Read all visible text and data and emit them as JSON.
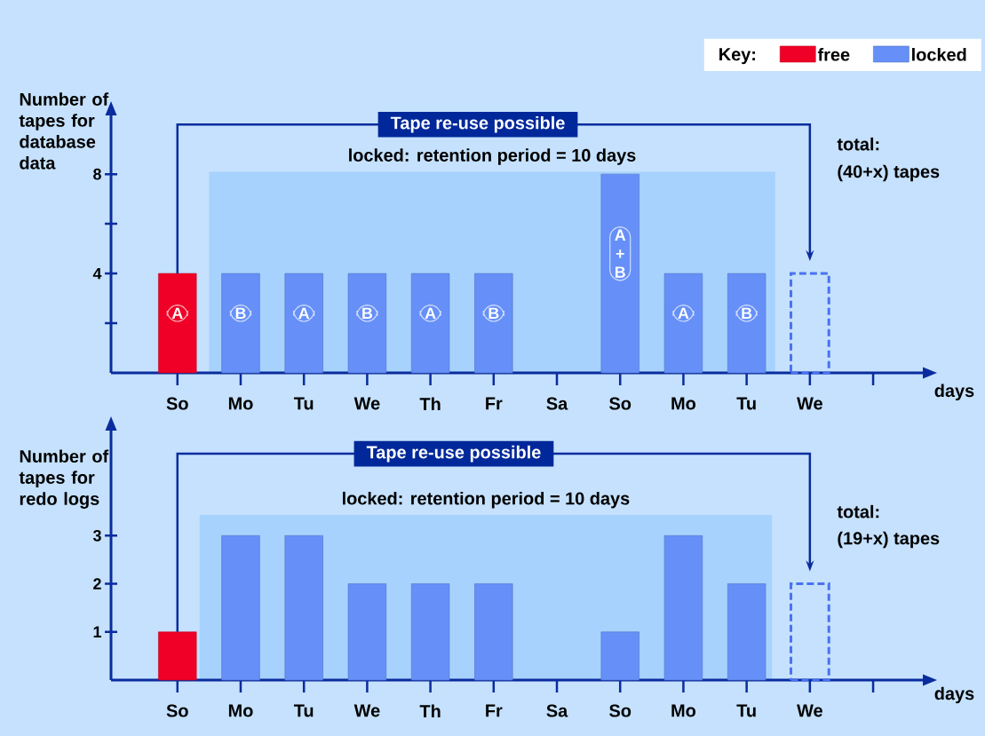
{
  "chart_data": [
    {
      "type": "bar",
      "ylabel": "Number of tapes for database data",
      "xlabel": "days",
      "legend_title": "Key:",
      "legend": "top right",
      "annotations": [
        "Tape re-use possible",
        "locked: retention period = 10 days",
        "total:",
        "(40+x) tapes"
      ],
      "categories": [
        "So",
        "Mo",
        "Tu",
        "We",
        "Th",
        "Fr",
        "Sa",
        "So",
        "Mo",
        "Tu",
        "We",
        null
      ],
      "ylim": [
        0,
        10.4
      ],
      "yticks": [
        {
          "value": 2,
          "label": null
        },
        4,
        {
          "value": 6,
          "label": null
        },
        8
      ],
      "series": [
        {
          "name": "free",
          "color": "#f00026",
          "values": [
            4,
            null,
            null,
            null,
            null,
            null,
            null,
            null,
            null,
            null,
            null,
            null
          ],
          "value_labels": [
            "A",
            null,
            null,
            null,
            null,
            null,
            null,
            null,
            null,
            null,
            null,
            null
          ]
        },
        {
          "name": "locked",
          "color": "#6690f8",
          "values": [
            null,
            4,
            4,
            4,
            4,
            4,
            null,
            8,
            4,
            4,
            null,
            null
          ],
          "value_labels": [
            null,
            "B",
            "A",
            "B",
            "A",
            "B",
            null,
            "A + B",
            "A",
            "B",
            null,
            null
          ]
        },
        {
          "color": "#4a72f0",
          "line_style": "dashed",
          "values": [
            null,
            null,
            null,
            null,
            null,
            null,
            null,
            null,
            null,
            null,
            4,
            null
          ]
        }
      ]
    },
    {
      "type": "bar",
      "ylabel": "Number of tapes for redo logs",
      "xlabel": "days",
      "annotations": [
        "Tape re-use possible",
        "locked: retention period = 10 days",
        "total:",
        "(19+x) tapes"
      ],
      "categories": [
        "So",
        "Mo",
        "Tu",
        "We",
        "Th",
        "Fr",
        "Sa",
        "So",
        "Mo",
        "Tu",
        "We",
        null
      ],
      "ylim": [
        0,
        5.2
      ],
      "yticks": [
        1,
        2,
        3
      ],
      "series": [
        {
          "color": "#f00026",
          "values": [
            1,
            null,
            null,
            null,
            null,
            null,
            null,
            null,
            null,
            null,
            null,
            null
          ]
        },
        {
          "color": "#6690f8",
          "values": [
            null,
            3,
            3,
            2,
            2,
            2,
            null,
            1,
            3,
            2,
            null,
            null
          ]
        },
        {
          "color": "#4a72f0",
          "line_style": "dashed",
          "values": [
            null,
            null,
            null,
            null,
            null,
            null,
            null,
            null,
            null,
            null,
            2,
            null
          ]
        }
      ]
    }
  ]
}
